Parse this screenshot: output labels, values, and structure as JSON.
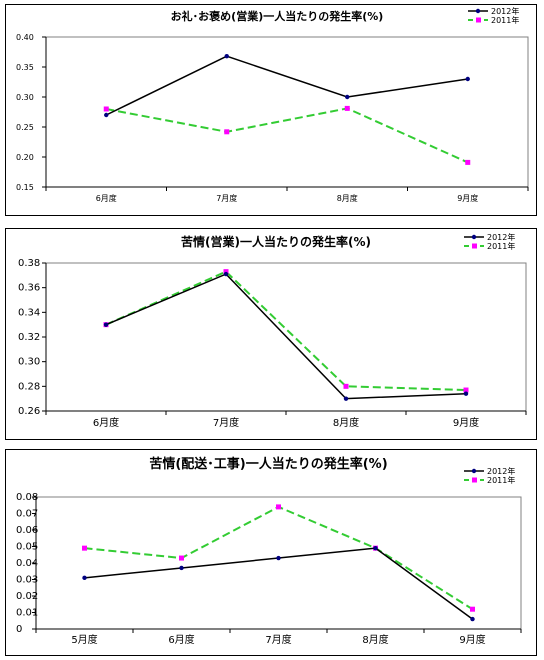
{
  "chart_data": [
    {
      "type": "line",
      "title": "お礼･お褒め(営業)一人当たりの発生率(%)",
      "categories": [
        "6月度",
        "7月度",
        "8月度",
        "9月度"
      ],
      "ylim": [
        0.15,
        0.4
      ],
      "yticks": [
        "0.15",
        "0.20",
        "0.25",
        "0.30",
        "0.35",
        "0.40"
      ],
      "grid": false,
      "legend": "top-right",
      "series": [
        {
          "name": "2012年",
          "values": [
            0.27,
            0.368,
            0.3,
            0.33
          ],
          "color": "#000000",
          "marker_color": "#000080",
          "style": "solid"
        },
        {
          "name": "2011年",
          "values": [
            0.28,
            0.242,
            0.281,
            0.191
          ],
          "color": "#33cc33",
          "marker_color": "#ff00ff",
          "style": "dashed"
        }
      ]
    },
    {
      "type": "line",
      "title": "苦情(営業)一人当たりの発生率(%)",
      "categories": [
        "6月度",
        "7月度",
        "8月度",
        "9月度"
      ],
      "ylim": [
        0.26,
        0.38
      ],
      "yticks": [
        "0.26",
        "0.28",
        "0.30",
        "0.32",
        "0.34",
        "0.36",
        "0.38"
      ],
      "grid": false,
      "legend": "top-right",
      "series": [
        {
          "name": "2012年",
          "values": [
            0.33,
            0.371,
            0.27,
            0.274
          ],
          "color": "#000000",
          "marker_color": "#000080",
          "style": "solid"
        },
        {
          "name": "2011年",
          "values": [
            0.33,
            0.373,
            0.28,
            0.277
          ],
          "color": "#33cc33",
          "marker_color": "#ff00ff",
          "style": "dashed"
        }
      ]
    },
    {
      "type": "line",
      "title": "苦情(配送･工事)一人当たりの発生率(%)",
      "categories": [
        "5月度",
        "6月度",
        "7月度",
        "8月度",
        "9月度"
      ],
      "ylim": [
        0,
        0.08
      ],
      "yticks": [
        "0",
        "0.01",
        "0.02",
        "0.03",
        "0.04",
        "0.05",
        "0.06",
        "0.07",
        "0.08"
      ],
      "grid": false,
      "legend": "top-right",
      "series": [
        {
          "name": "2012年",
          "values": [
            0.031,
            0.037,
            0.043,
            0.049,
            0.006
          ],
          "color": "#000000",
          "marker_color": "#000080",
          "style": "solid"
        },
        {
          "name": "2011年",
          "values": [
            0.049,
            0.043,
            0.074,
            0.049,
            0.012
          ],
          "color": "#33cc33",
          "marker_color": "#ff00ff",
          "style": "dashed"
        }
      ]
    }
  ]
}
